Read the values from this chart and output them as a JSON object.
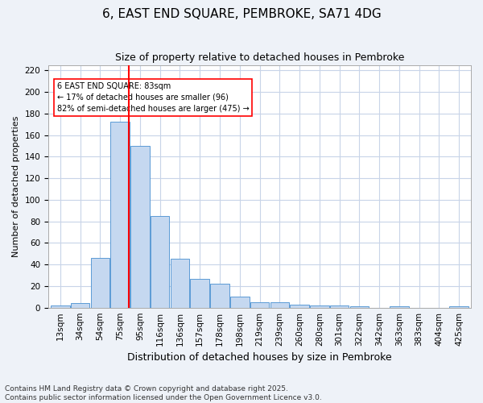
{
  "title1": "6, EAST END SQUARE, PEMBROKE, SA71 4DG",
  "title2": "Size of property relative to detached houses in Pembroke",
  "xlabel": "Distribution of detached houses by size in Pembroke",
  "ylabel": "Number of detached properties",
  "bar_labels": [
    "13sqm",
    "34sqm",
    "54sqm",
    "75sqm",
    "95sqm",
    "116sqm",
    "136sqm",
    "157sqm",
    "178sqm",
    "198sqm",
    "219sqm",
    "239sqm",
    "260sqm",
    "280sqm",
    "301sqm",
    "322sqm",
    "342sqm",
    "363sqm",
    "383sqm",
    "404sqm",
    "425sqm"
  ],
  "bar_heights": [
    2,
    4,
    46,
    172,
    150,
    85,
    45,
    27,
    22,
    10,
    5,
    5,
    3,
    2,
    2,
    1,
    0,
    1,
    0,
    0,
    1
  ],
  "bar_color": "#c5d8f0",
  "bar_edge_color": "#5b9bd5",
  "vline_x": 83,
  "vline_color": "red",
  "annotation_text": "6 EAST END SQUARE: 83sqm\n← 17% of detached houses are smaller (96)\n82% of semi-detached houses are larger (475) →",
  "ylim": [
    0,
    225
  ],
  "yticks": [
    0,
    20,
    40,
    60,
    80,
    100,
    120,
    140,
    160,
    180,
    200,
    220
  ],
  "footer1": "Contains HM Land Registry data © Crown copyright and database right 2025.",
  "footer2": "Contains public sector information licensed under the Open Government Licence v3.0.",
  "bg_color": "#eef2f8",
  "plot_bg_color": "#ffffff",
  "grid_color": "#c8d4e8"
}
